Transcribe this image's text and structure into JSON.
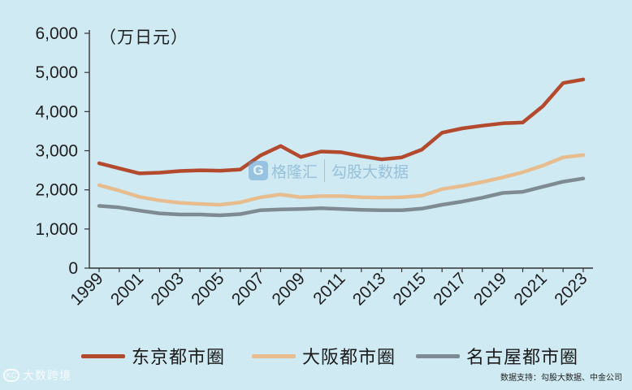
{
  "chart_data": {
    "type": "line",
    "unit_label": "（万日元）",
    "x": [
      "1999",
      "2000",
      "2001",
      "2002",
      "2003",
      "2004",
      "2005",
      "2006",
      "2007",
      "2008",
      "2009",
      "2010",
      "2011",
      "2012",
      "2013",
      "2014",
      "2015",
      "2016",
      "2017",
      "2018",
      "2019",
      "2020",
      "2021",
      "2022",
      "2023"
    ],
    "x_tick_labels": [
      "1999",
      "2001",
      "2003",
      "2005",
      "2007",
      "2009",
      "2011",
      "2013",
      "2015",
      "2017",
      "2019",
      "2021",
      "2023"
    ],
    "ylim": [
      0,
      6000
    ],
    "y_ticks": [
      0,
      1000,
      2000,
      3000,
      4000,
      5000,
      6000
    ],
    "y_tick_labels": [
      "0",
      "1,000",
      "2,000",
      "3,000",
      "4,000",
      "5,000",
      "6,000"
    ],
    "grid": false,
    "legend_position": "bottom",
    "series": [
      {
        "name": "东京都市圈",
        "color": "#b34a2e",
        "values": [
          2680,
          2550,
          2420,
          2440,
          2480,
          2500,
          2490,
          2520,
          2880,
          3120,
          2840,
          2980,
          2960,
          2860,
          2780,
          2830,
          3030,
          3460,
          3570,
          3640,
          3700,
          3720,
          4140,
          4730,
          4820
        ]
      },
      {
        "name": "大阪都市圈",
        "color": "#e7bd8f",
        "values": [
          2120,
          1980,
          1820,
          1730,
          1670,
          1640,
          1620,
          1680,
          1810,
          1880,
          1810,
          1840,
          1840,
          1810,
          1800,
          1810,
          1850,
          2020,
          2100,
          2200,
          2320,
          2450,
          2620,
          2830,
          2890
        ]
      },
      {
        "name": "名古屋都市圈",
        "color": "#7f8b92",
        "values": [
          1590,
          1550,
          1470,
          1400,
          1370,
          1370,
          1350,
          1380,
          1480,
          1500,
          1510,
          1530,
          1510,
          1490,
          1480,
          1480,
          1520,
          1620,
          1700,
          1800,
          1920,
          1950,
          2080,
          2210,
          2290
        ]
      }
    ]
  },
  "watermark": {
    "logo": "G",
    "text_a": "格隆汇",
    "text_b": "勾股大数据"
  },
  "source_note": "数据支持：勾股大数据、中金公司",
  "brand": {
    "icon": "KC",
    "text": "大数跨境"
  }
}
